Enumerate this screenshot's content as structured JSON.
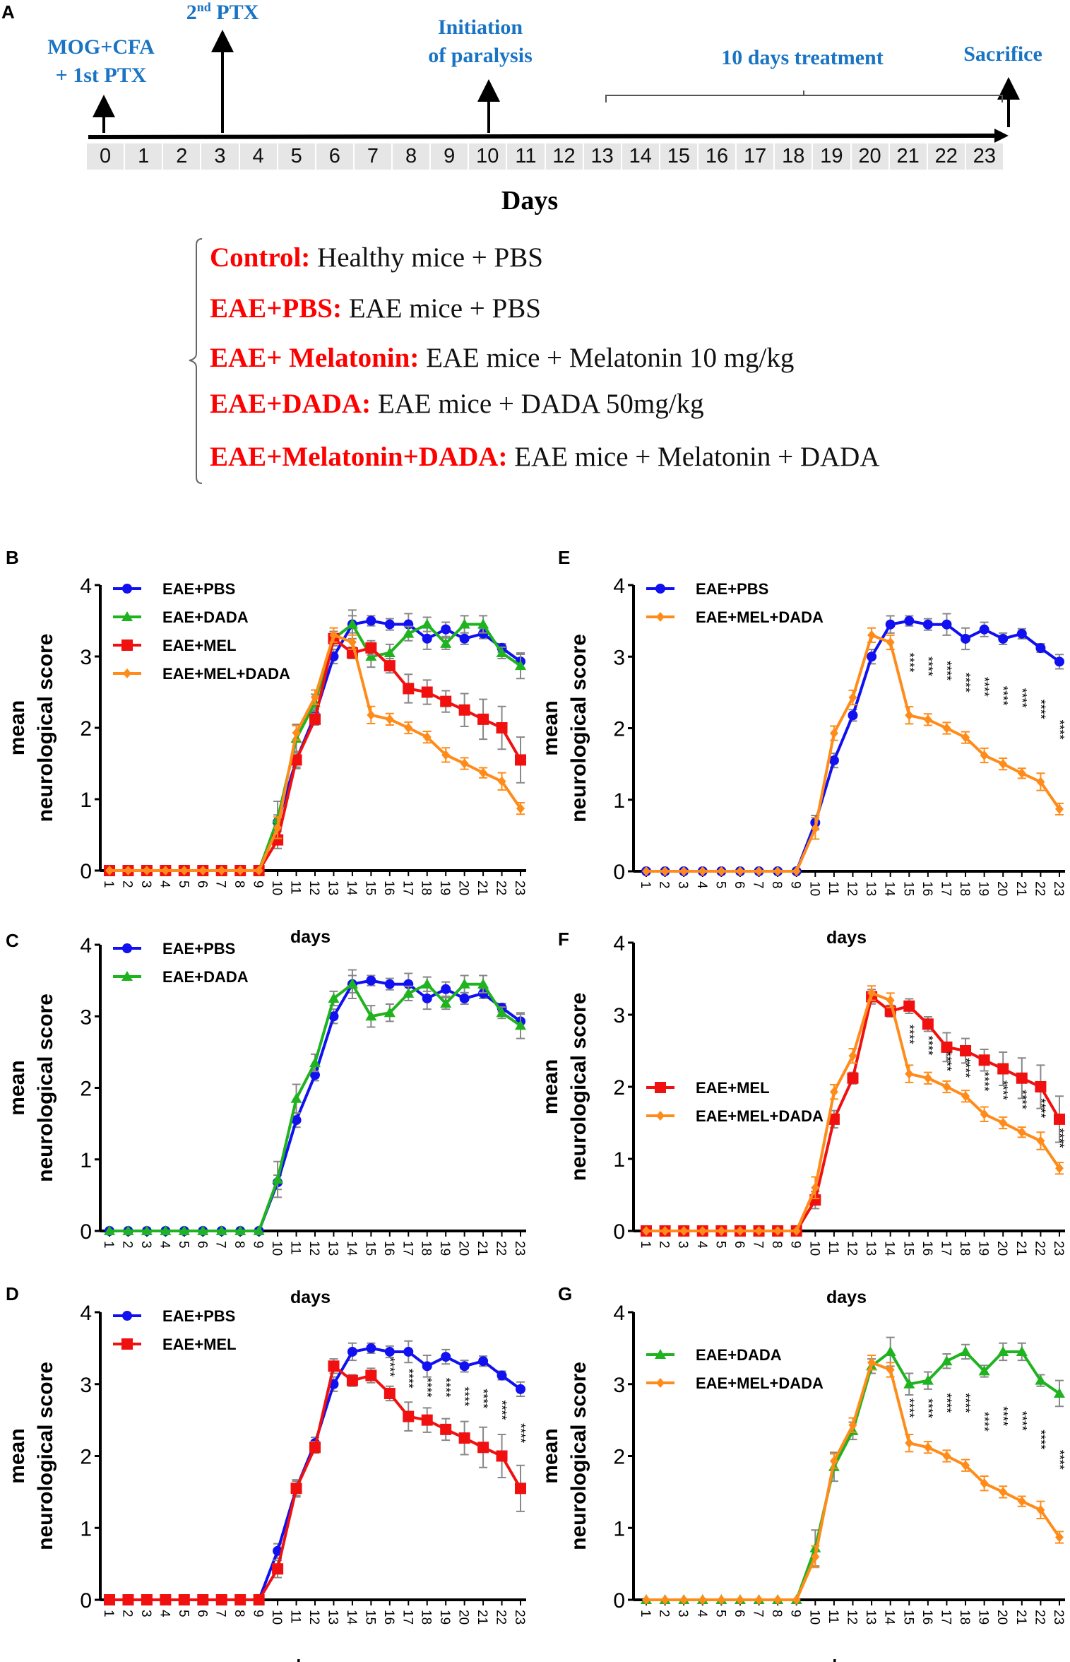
{
  "panel_a": {
    "label": "A",
    "events": {
      "mog": "MOG+CFA",
      "ptx1": "+ 1st PTX",
      "ptx2_num": "2",
      "ptx2_sup": "nd",
      "ptx2_rest": " PTX",
      "init1": "Initiation",
      "init2": "of paralysis",
      "treatment": "10 days treatment",
      "sacrifice": "Sacrifice"
    },
    "days": [
      "0",
      "1",
      "2",
      "3",
      "4",
      "5",
      "6",
      "7",
      "8",
      "9",
      "10",
      "11",
      "12",
      "13",
      "14",
      "15",
      "16",
      "17",
      "18",
      "19",
      "20",
      "21",
      "22",
      "23"
    ],
    "axis_label": "Days",
    "groups": [
      {
        "key": "Control:",
        "desc": " Healthy mice + PBS"
      },
      {
        "key": "EAE+PBS:",
        "desc": " EAE mice + PBS"
      },
      {
        "key": "EAE+ Melatonin:",
        "desc": " EAE mice + Melatonin 10 mg/kg"
      },
      {
        "key": "EAE+DADA:",
        "desc": " EAE mice + DADA 50mg/kg"
      },
      {
        "key": "EAE+Melatonin+DADA:",
        "desc": " EAE mice + Melatonin + DADA"
      }
    ]
  },
  "chart_data": {
    "type": "line",
    "xlabel": "days",
    "ylabel_line1": "mean",
    "ylabel_line2": "neurological score",
    "x": [
      1,
      2,
      3,
      4,
      5,
      6,
      7,
      8,
      9,
      10,
      11,
      12,
      13,
      14,
      15,
      16,
      17,
      18,
      19,
      20,
      21,
      22,
      23
    ],
    "ylim": [
      0,
      4
    ],
    "yticks": [
      0,
      1,
      2,
      3,
      4
    ],
    "series": {
      "PBS": {
        "name": "EAE+PBS",
        "color": "#1010f0",
        "marker": "circle",
        "values": [
          0,
          0,
          0,
          0,
          0,
          0,
          0,
          0,
          0,
          0.68,
          1.55,
          2.18,
          3.0,
          3.45,
          3.5,
          3.45,
          3.45,
          3.25,
          3.38,
          3.25,
          3.32,
          3.12,
          2.93
        ],
        "err": [
          0,
          0,
          0,
          0,
          0,
          0,
          0,
          0,
          0,
          0.1,
          0.1,
          0.08,
          0.1,
          0.12,
          0.07,
          0.08,
          0.15,
          0.15,
          0.1,
          0.08,
          0.07,
          0.06,
          0.1
        ]
      },
      "DADA": {
        "name": "EAE+DADA",
        "color": "#1fb31f",
        "marker": "triangle",
        "values": [
          0,
          0,
          0,
          0,
          0,
          0,
          0,
          0,
          0,
          0.72,
          1.85,
          2.35,
          3.25,
          3.45,
          3.0,
          3.05,
          3.32,
          3.45,
          3.18,
          3.45,
          3.45,
          3.05,
          2.87
        ],
        "err": [
          0,
          0,
          0,
          0,
          0,
          0,
          0,
          0,
          0,
          0.25,
          0.2,
          0.12,
          0.1,
          0.2,
          0.15,
          0.12,
          0.1,
          0.1,
          0.08,
          0.12,
          0.12,
          0.08,
          0.18
        ]
      },
      "MEL": {
        "name": "EAE+MEL",
        "color": "#f01010",
        "marker": "square",
        "values": [
          0,
          0,
          0,
          0,
          0,
          0,
          0,
          0,
          0,
          0.43,
          1.55,
          2.12,
          3.25,
          3.05,
          3.12,
          2.87,
          2.55,
          2.5,
          2.37,
          2.25,
          2.12,
          2.0,
          1.55
        ],
        "err": [
          0,
          0,
          0,
          0,
          0,
          0,
          0,
          0,
          0,
          0.12,
          0.12,
          0.08,
          0.1,
          0.08,
          0.1,
          0.1,
          0.2,
          0.17,
          0.15,
          0.23,
          0.28,
          0.3,
          0.32
        ]
      },
      "MELDADA": {
        "name": "EAE+MEL+DADA",
        "color": "#ff8c1a",
        "marker": "diamond",
        "values": [
          0,
          0,
          0,
          0,
          0,
          0,
          0,
          0,
          0,
          0.6,
          1.93,
          2.43,
          3.3,
          3.2,
          2.18,
          2.12,
          2.0,
          1.87,
          1.62,
          1.5,
          1.37,
          1.25,
          0.87
        ],
        "err": [
          0,
          0,
          0,
          0,
          0,
          0,
          0,
          0,
          0,
          0.15,
          0.1,
          0.1,
          0.1,
          0.1,
          0.12,
          0.08,
          0.08,
          0.08,
          0.1,
          0.08,
          0.07,
          0.12,
          0.08
        ]
      }
    },
    "panels": [
      {
        "label": "B",
        "series": [
          "PBS",
          "DADA",
          "MEL",
          "MELDADA"
        ],
        "stars": []
      },
      {
        "label": "C",
        "series": [
          "PBS",
          "DADA"
        ],
        "stars": []
      },
      {
        "label": "D",
        "series": [
          "PBS",
          "MEL"
        ],
        "stars": [
          16,
          17,
          18,
          19,
          20,
          21,
          22,
          23
        ],
        "star_text": "****"
      },
      {
        "label": "E",
        "series": [
          "PBS",
          "MELDADA"
        ],
        "stars": [
          15,
          16,
          17,
          18,
          19,
          20,
          21,
          22,
          23
        ],
        "star_text": "****"
      },
      {
        "label": "F",
        "series": [
          "MEL",
          "MELDADA"
        ],
        "stars": [
          15,
          16,
          17,
          18,
          19,
          20,
          21,
          22,
          23
        ],
        "star_text": "****"
      },
      {
        "label": "G",
        "series": [
          "DADA",
          "MELDADA"
        ],
        "stars": [
          15,
          16,
          17,
          18,
          19,
          20,
          21,
          22,
          23
        ],
        "star_text": "****"
      }
    ]
  }
}
